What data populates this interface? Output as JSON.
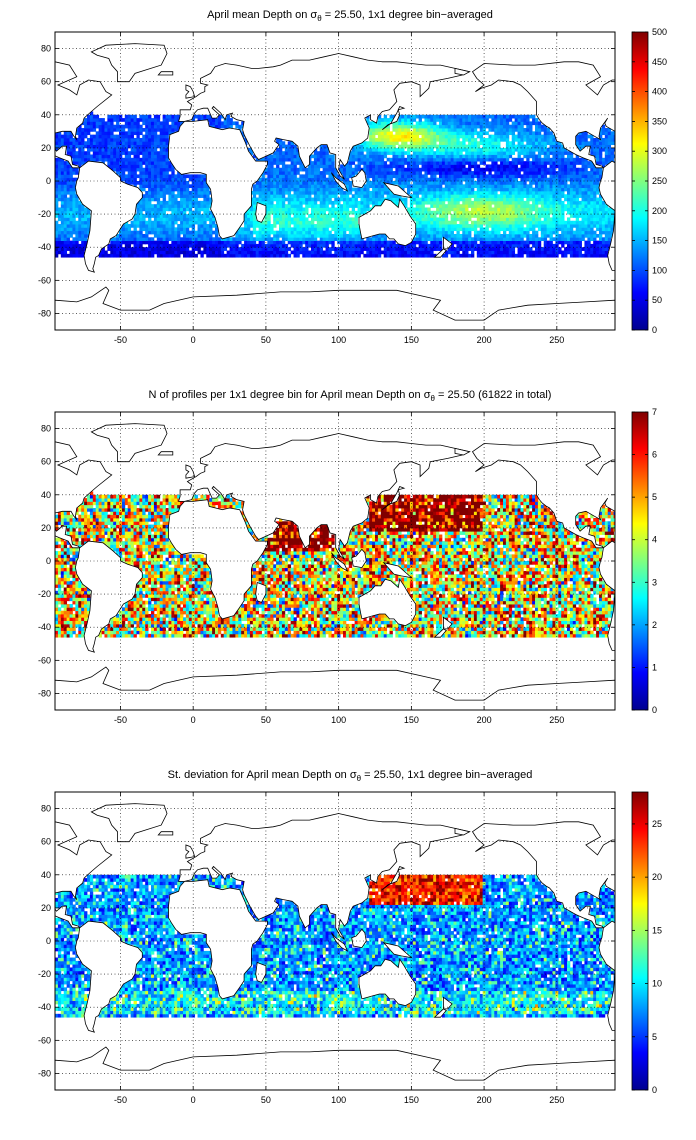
{
  "colors": {
    "land": "#ffffff",
    "coast": "#000000",
    "grid": "#000000",
    "colormap": "jet"
  },
  "chart_data": [
    {
      "type": "heatmap",
      "title_pre": "April mean Depth on ",
      "title_sym": "σ",
      "title_sub": "θ",
      "title_post": " = 25.50, 1x1 degree bin−averaged",
      "xlim": [
        -95,
        290
      ],
      "ylim": [
        -90,
        90
      ],
      "xticks": [
        "-50",
        "0",
        "50",
        "100",
        "150",
        "200",
        "250"
      ],
      "yticks": [
        "-80",
        "-60",
        "-40",
        "-20",
        "0",
        "20",
        "40",
        "60",
        "80"
      ],
      "clim": [
        0,
        500
      ],
      "cticks": [
        "0",
        "50",
        "100",
        "150",
        "200",
        "250",
        "300",
        "350",
        "400",
        "450",
        "500"
      ],
      "grid": true,
      "colorbar": "right",
      "field": "mean_depth"
    },
    {
      "type": "heatmap",
      "title_pre": "N of profiles per 1x1 degree bin for April mean Depth on ",
      "title_sym": "σ",
      "title_sub": "θ",
      "title_post": " = 25.50 (61822 in total)",
      "xlim": [
        -95,
        290
      ],
      "ylim": [
        -90,
        90
      ],
      "xticks": [
        "-50",
        "0",
        "50",
        "100",
        "150",
        "200",
        "250"
      ],
      "yticks": [
        "-80",
        "-60",
        "-40",
        "-20",
        "0",
        "20",
        "40",
        "60",
        "80"
      ],
      "clim": [
        0,
        7
      ],
      "cticks": [
        "0",
        "1",
        "2",
        "3",
        "4",
        "5",
        "6",
        "7"
      ],
      "grid": true,
      "colorbar": "right",
      "field": "count"
    },
    {
      "type": "heatmap",
      "title_pre": "St. deviation for April mean Depth on ",
      "title_sym": "σ",
      "title_sub": "θ",
      "title_post": " = 25.50, 1x1 degree bin−averaged",
      "xlim": [
        -95,
        290
      ],
      "ylim": [
        -90,
        90
      ],
      "xticks": [
        "-50",
        "0",
        "50",
        "100",
        "150",
        "200",
        "250"
      ],
      "yticks": [
        "-80",
        "-60",
        "-40",
        "-20",
        "0",
        "20",
        "40",
        "60",
        "80"
      ],
      "clim": [
        0,
        28
      ],
      "cticks": [
        "0",
        "5",
        "10",
        "15",
        "20",
        "25"
      ],
      "grid": true,
      "colorbar": "right",
      "field": "std"
    }
  ]
}
